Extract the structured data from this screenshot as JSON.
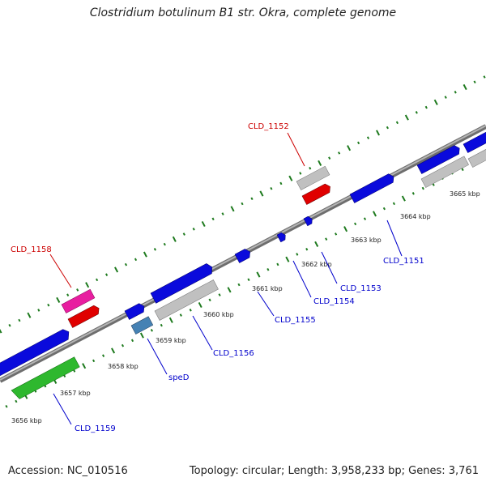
{
  "title": "Clostridium botulinum B1 str. Okra, complete genome",
  "footer": {
    "accession": "Accession: NC_010516",
    "summary": "Topology: circular; Length: 3,958,233 bp; Genes: 3,761"
  },
  "colors": {
    "backbone": "#8c8c8c",
    "tick": "#1e7a1e",
    "forward_gene": "#0a0adc",
    "reverse_gene": "#0a0adc",
    "trna": "#c0c0c0",
    "rrna_red": "#e00000",
    "pink": "#e81ea0",
    "green_gene": "#2eb82e",
    "spe_gene": "#4682b4",
    "label_red": "#cc0000",
    "label_blue": "#0000cc"
  },
  "scale_labels": [
    "3656 kbp",
    "3657 kbp",
    "3658 kbp",
    "3659 kbp",
    "3660 kbp",
    "3661 kbp",
    "3662 kbp",
    "3663 kbp",
    "3664 kbp",
    "3665 kbp"
  ],
  "gene_labels": [
    {
      "id": "cld1152",
      "text": "CLD_1152",
      "color": "red"
    },
    {
      "id": "cld1158",
      "text": "CLD_1158",
      "color": "red"
    },
    {
      "id": "cld1151",
      "text": "CLD_1151",
      "color": "blue"
    },
    {
      "id": "cld1153",
      "text": "CLD_1153",
      "color": "blue"
    },
    {
      "id": "cld1154",
      "text": "CLD_1154",
      "color": "blue"
    },
    {
      "id": "cld1155",
      "text": "CLD_1155",
      "color": "blue"
    },
    {
      "id": "cld1156",
      "text": "CLD_1156",
      "color": "blue"
    },
    {
      "id": "sped",
      "text": "speD",
      "color": "blue"
    },
    {
      "id": "cld1159",
      "text": "CLD_1159",
      "color": "blue"
    }
  ]
}
